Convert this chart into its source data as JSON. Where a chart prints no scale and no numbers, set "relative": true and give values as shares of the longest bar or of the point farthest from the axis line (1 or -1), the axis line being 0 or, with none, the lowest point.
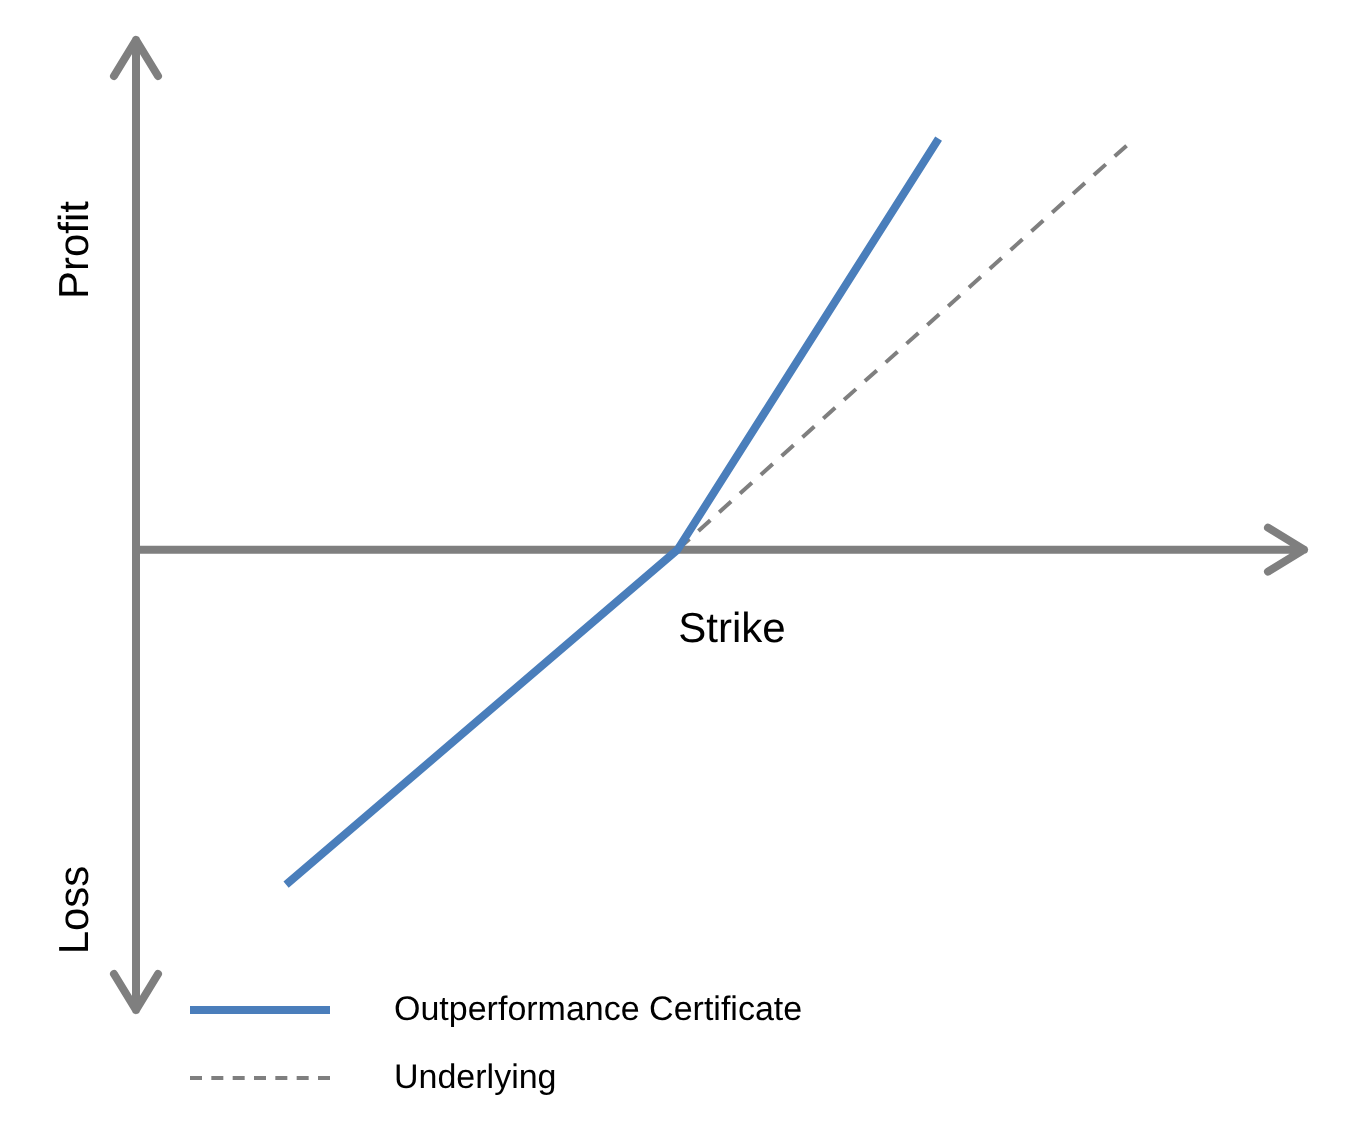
{
  "chart_data": {
    "type": "line",
    "relative": true,
    "xlabel": "Strike",
    "categories": [
      null,
      null,
      null,
      null,
      null,
      null,
      null,
      null,
      null,
      null,
      null,
      null,
      null,
      null
    ],
    "annotations": [
      "Profit",
      "Loss"
    ],
    "legend": "bottom",
    "marker": "none",
    "series": [
      {
        "name": "Outperformance Certificate",
        "color": "#4a7ebb",
        "values": [
          -0.815,
          null,
          null,
          null,
          null,
          null,
          0,
          null,
          null,
          null,
          1,
          null,
          null,
          null
        ],
        "line_style": "solid"
      },
      {
        "name": "Underlying",
        "color": "#7f7f7f",
        "values": [
          null,
          null,
          null,
          null,
          null,
          null,
          0,
          null,
          null,
          null,
          null,
          null,
          null,
          1
        ],
        "line_style": "dashed"
      }
    ]
  }
}
